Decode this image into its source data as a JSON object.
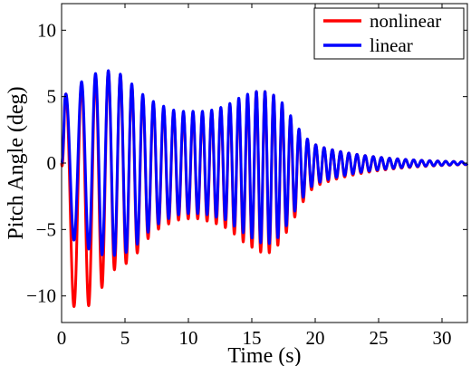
{
  "chart_data": {
    "type": "line",
    "title": "",
    "xlabel": "Time (s)",
    "ylabel": "Pitch Angle (deg)",
    "xlim": [
      0,
      32
    ],
    "ylim": [
      -12,
      12
    ],
    "x_ticks": [
      0,
      5,
      10,
      15,
      20,
      25,
      30
    ],
    "x_tick_labels": [
      "0",
      "5",
      "10",
      "15",
      "20",
      "25",
      "30"
    ],
    "y_ticks": [
      -10,
      -5,
      0,
      5,
      10
    ],
    "y_tick_labels": [
      "−10",
      "−5",
      "0",
      "5",
      "10"
    ],
    "grid": false,
    "legend_position": "top-right",
    "series": [
      {
        "name": "nonlinear",
        "color": "#ff0000",
        "peak_times": [
          0.4,
          1.8,
          3.0,
          4.2,
          5.2,
          6.2,
          7.1,
          8.0,
          8.8,
          9.6,
          10.4,
          11.2,
          11.9,
          12.6,
          13.3,
          14.0,
          14.7,
          15.4,
          16.0,
          16.6,
          17.2,
          17.8,
          18.4,
          19.0,
          19.6,
          20.2
        ],
        "peaks": [
          5.2,
          6.2,
          6.8,
          7.0,
          6.2,
          5.2,
          4.6,
          4.2,
          3.9,
          3.8,
          3.8,
          3.8,
          3.9,
          4.1,
          4.4,
          4.8,
          5.1,
          5.4,
          5.4,
          5.2,
          4.7,
          3.9,
          2.9,
          2.1,
          1.6,
          1.3
        ],
        "trough_times": [
          1.2,
          2.6,
          3.7,
          4.8,
          5.8,
          6.7,
          7.6,
          8.4,
          9.2,
          10.0,
          10.8,
          11.6,
          12.3,
          13.0,
          13.7,
          14.4,
          15.1,
          15.7,
          16.3,
          16.9,
          17.5,
          18.1,
          18.7,
          19.3,
          19.9
        ],
        "troughs": [
          -10.8,
          -10.7,
          -8.2,
          -7.8,
          -7.0,
          -5.8,
          -5.0,
          -4.6,
          -4.3,
          -4.2,
          -4.2,
          -4.4,
          -4.6,
          -4.9,
          -5.4,
          -6.0,
          -6.4,
          -6.7,
          -6.8,
          -6.4,
          -5.6,
          -4.6,
          -3.5,
          -2.5,
          -1.8
        ]
      },
      {
        "name": "linear",
        "color": "#0000ff",
        "peak_times": [
          0.4,
          1.8,
          3.0,
          4.2,
          5.2,
          6.2,
          7.1,
          8.0,
          8.8,
          9.6,
          10.4,
          11.2,
          11.9,
          12.6,
          13.3,
          14.0,
          14.7,
          15.4,
          16.0,
          16.6,
          17.2,
          17.8,
          18.4,
          19.0,
          19.6,
          20.2
        ],
        "peaks": [
          5.2,
          6.3,
          6.9,
          7.0,
          6.3,
          5.3,
          4.7,
          4.3,
          4.0,
          3.9,
          3.9,
          3.9,
          4.0,
          4.2,
          4.5,
          4.9,
          5.2,
          5.4,
          5.4,
          5.2,
          4.8,
          4.0,
          3.0,
          2.2,
          1.6,
          1.3
        ],
        "trough_times": [
          1.2,
          2.6,
          3.7,
          4.8,
          5.8,
          6.7,
          7.6,
          8.4,
          9.2,
          10.0,
          10.8,
          11.6,
          12.3,
          13.0,
          13.7,
          14.4,
          15.1,
          15.7,
          16.3,
          16.9,
          17.5,
          18.1,
          18.7,
          19.3,
          19.9
        ],
        "troughs": [
          -5.8,
          -6.8,
          -7.0,
          -6.9,
          -6.3,
          -5.3,
          -4.6,
          -4.2,
          -3.9,
          -3.8,
          -3.8,
          -3.9,
          -4.1,
          -4.3,
          -4.8,
          -5.3,
          -5.7,
          -6.0,
          -6.1,
          -5.8,
          -5.1,
          -4.1,
          -3.1,
          -2.2,
          -1.6
        ]
      }
    ]
  }
}
